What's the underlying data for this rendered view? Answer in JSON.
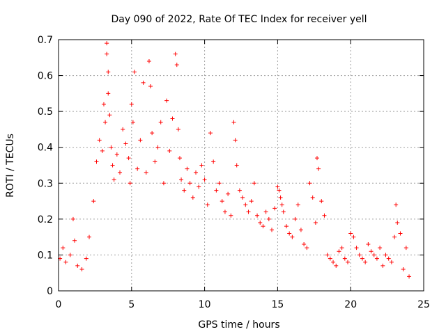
{
  "chart_data": {
    "type": "scatter",
    "title": "Day 090 of 2022, Rate Of TEC Index for receiver yell",
    "xlabel": "GPS time / hours",
    "ylabel": "ROTI / TECUs",
    "xlim": [
      0,
      25
    ],
    "ylim": [
      0,
      0.7
    ],
    "xticks": [
      "0",
      "5",
      "10",
      "15",
      "20",
      "25"
    ],
    "yticks": [
      "0",
      "0.1",
      "0.2",
      "0.3",
      "0.4",
      "0.5",
      "0.6",
      "0.7"
    ],
    "grid": true,
    "marker": "+",
    "color": "#ff0000",
    "series": [
      {
        "name": "",
        "x": [
          0.1,
          0.3,
          0.5,
          0.8,
          1.0,
          1.1,
          1.3,
          1.6,
          1.9,
          2.1,
          2.4,
          2.6,
          2.8,
          3.0,
          3.1,
          3.2,
          3.3,
          3.3,
          3.4,
          3.4,
          3.5,
          3.6,
          3.7,
          3.8,
          4.0,
          4.2,
          4.4,
          4.6,
          4.8,
          4.9,
          5.0,
          5.1,
          5.2,
          5.4,
          5.6,
          5.8,
          6.0,
          6.2,
          6.3,
          6.4,
          6.6,
          6.8,
          7.0,
          7.2,
          7.4,
          7.6,
          7.8,
          8.0,
          8.1,
          8.2,
          8.3,
          8.4,
          8.6,
          8.8,
          9.0,
          9.2,
          9.4,
          9.6,
          9.8,
          10.0,
          10.2,
          10.4,
          10.6,
          10.8,
          11.0,
          11.2,
          11.4,
          11.6,
          11.8,
          12.0,
          12.1,
          12.2,
          12.4,
          12.6,
          12.8,
          13.0,
          13.2,
          13.4,
          13.6,
          13.8,
          14.0,
          14.2,
          14.4,
          14.6,
          14.8,
          15.0,
          15.1,
          15.2,
          15.3,
          15.4,
          15.6,
          15.8,
          16.0,
          16.2,
          16.4,
          16.6,
          16.8,
          17.0,
          17.2,
          17.4,
          17.6,
          17.7,
          17.8,
          18.0,
          18.2,
          18.4,
          18.6,
          18.8,
          19.0,
          19.2,
          19.4,
          19.6,
          19.8,
          20.0,
          20.2,
          20.4,
          20.6,
          20.8,
          21.0,
          21.2,
          21.4,
          21.6,
          21.8,
          22.0,
          22.2,
          22.4,
          22.6,
          22.8,
          23.0,
          23.1,
          23.2,
          23.4,
          23.6,
          23.8,
          24.0
        ],
        "y": [
          0.09,
          0.12,
          0.08,
          0.1,
          0.2,
          0.14,
          0.07,
          0.06,
          0.09,
          0.15,
          0.25,
          0.36,
          0.42,
          0.39,
          0.52,
          0.47,
          0.69,
          0.66,
          0.61,
          0.55,
          0.49,
          0.4,
          0.35,
          0.31,
          0.38,
          0.33,
          0.45,
          0.41,
          0.37,
          0.3,
          0.52,
          0.47,
          0.61,
          0.34,
          0.42,
          0.58,
          0.33,
          0.64,
          0.57,
          0.44,
          0.36,
          0.4,
          0.47,
          0.3,
          0.53,
          0.39,
          0.48,
          0.66,
          0.63,
          0.45,
          0.37,
          0.31,
          0.28,
          0.34,
          0.3,
          0.26,
          0.33,
          0.29,
          0.35,
          0.31,
          0.24,
          0.44,
          0.36,
          0.28,
          0.3,
          0.25,
          0.22,
          0.27,
          0.21,
          0.47,
          0.42,
          0.35,
          0.28,
          0.26,
          0.24,
          0.22,
          0.25,
          0.3,
          0.21,
          0.19,
          0.18,
          0.22,
          0.2,
          0.17,
          0.23,
          0.29,
          0.28,
          0.26,
          0.24,
          0.22,
          0.18,
          0.16,
          0.15,
          0.2,
          0.24,
          0.17,
          0.13,
          0.12,
          0.3,
          0.26,
          0.19,
          0.37,
          0.34,
          0.25,
          0.21,
          0.1,
          0.09,
          0.08,
          0.07,
          0.11,
          0.12,
          0.09,
          0.08,
          0.16,
          0.15,
          0.12,
          0.1,
          0.09,
          0.08,
          0.13,
          0.11,
          0.1,
          0.09,
          0.12,
          0.07,
          0.1,
          0.09,
          0.08,
          0.15,
          0.24,
          0.19,
          0.16,
          0.06,
          0.12,
          0.04
        ]
      }
    ]
  }
}
